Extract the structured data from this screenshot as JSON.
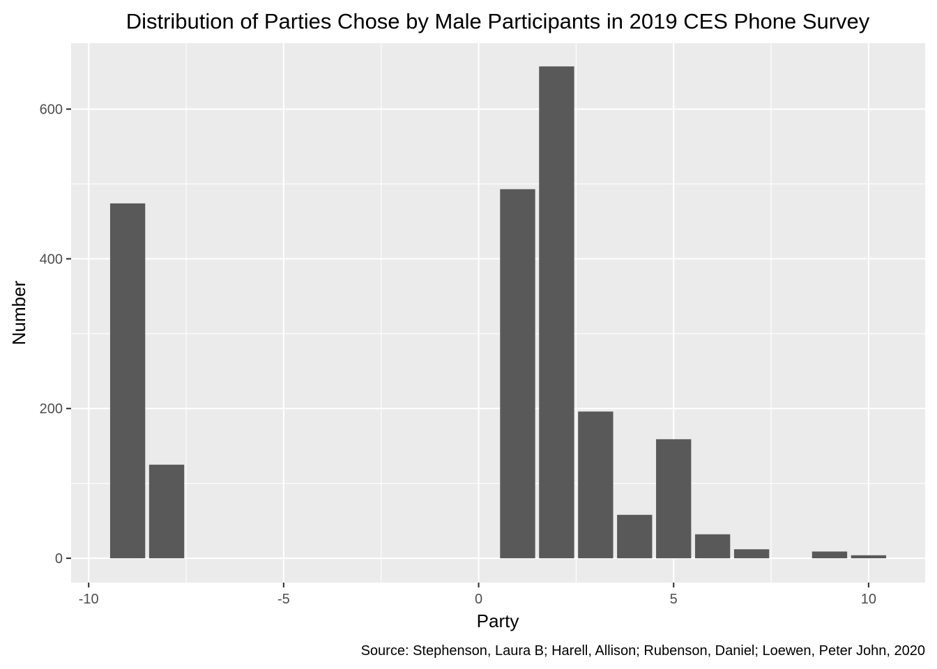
{
  "chart_data": {
    "type": "bar",
    "title": "Distribution of Parties Chose by Male Participants in 2019 CES Phone Survey",
    "xlabel": "Party",
    "ylabel": "Number",
    "caption": "Source: Stephenson, Laura B; Harell, Allison; Rubenson, Daniel; Loewen, Peter John, 2020",
    "xlim": [
      -10.45,
      11.45
    ],
    "ylim": [
      -32.5,
      688
    ],
    "x_ticks": [
      -10,
      -5,
      0,
      5,
      10
    ],
    "x_tick_labels": [
      "-10",
      "-5",
      "0",
      "5",
      "10"
    ],
    "y_ticks": [
      0,
      200,
      400,
      600
    ],
    "y_tick_labels": [
      "0",
      "200",
      "400",
      "600"
    ],
    "x": [
      -9,
      -8,
      1,
      2,
      3,
      4,
      5,
      6,
      7,
      9,
      10
    ],
    "values": [
      474,
      125,
      493,
      657,
      196,
      58,
      159,
      32,
      12,
      9,
      4
    ],
    "bar_width": 0.9,
    "grid": true,
    "legend": "none"
  },
  "colors": {
    "background": "#ffffff",
    "panel": "#ebebeb",
    "grid": "#ffffff",
    "bar": "#595959",
    "tick_text": "#4d4d4d"
  }
}
